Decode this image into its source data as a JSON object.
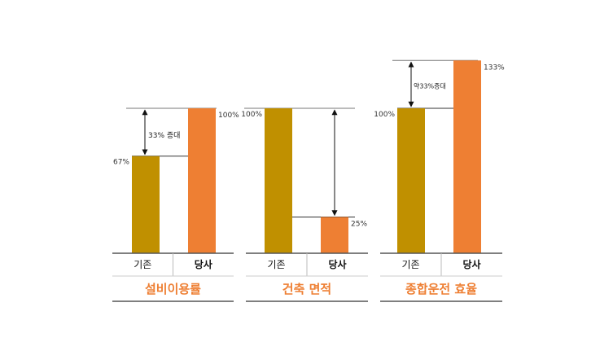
{
  "chart_data": [
    {
      "type": "bar",
      "title": "설비이용률",
      "categories": [
        "기존",
        "당사"
      ],
      "values": [
        67,
        100
      ],
      "data_labels": [
        "67%",
        "100%"
      ],
      "ylim": [
        0,
        100
      ],
      "annotation": "33% 증대",
      "colors": [
        "#C09000",
        "#EE7F33"
      ]
    },
    {
      "type": "bar",
      "title": "건축 면적",
      "categories": [
        "기존",
        "당사"
      ],
      "values": [
        100,
        25
      ],
      "data_labels": [
        "100%",
        "25%"
      ],
      "ylim": [
        0,
        100
      ],
      "annotation": "",
      "colors": [
        "#C09000",
        "#EE7F33"
      ]
    },
    {
      "type": "bar",
      "title": "종합운전 효율",
      "categories": [
        "기존",
        "당사"
      ],
      "values": [
        100,
        133
      ],
      "data_labels": [
        "100%",
        "133%"
      ],
      "ylim": [
        0,
        133
      ],
      "annotation": "약33%증대",
      "colors": [
        "#C09000",
        "#EE7F33"
      ]
    }
  ],
  "colors": {
    "title": "#EE7F33",
    "axis": "#6e6e6e",
    "text": "#222222"
  }
}
